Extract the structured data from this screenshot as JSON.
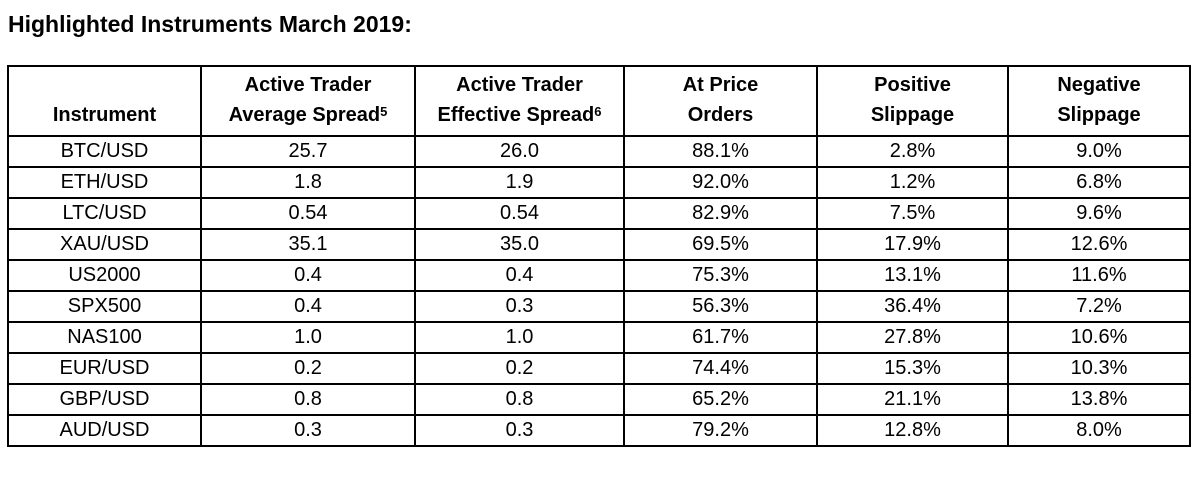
{
  "page": {
    "title": "Highlighted Instruments March 2019:"
  },
  "table": {
    "columns": [
      {
        "id": "instrument",
        "line1": "Instrument",
        "line2": "",
        "sup": ""
      },
      {
        "id": "active-trader-average-spread",
        "line1": "Active Trader",
        "line2": "Average Spread",
        "sup": "5"
      },
      {
        "id": "active-trader-effective-spread",
        "line1": "Active Trader",
        "line2": "Effective Spread",
        "sup": "6"
      },
      {
        "id": "at-price-orders",
        "line1": "At Price",
        "line2": "Orders",
        "sup": ""
      },
      {
        "id": "positive-slippage",
        "line1": "Positive",
        "line2": "Slippage",
        "sup": ""
      },
      {
        "id": "negative-slippage",
        "line1": "Negative",
        "line2": "Slippage",
        "sup": ""
      }
    ],
    "rows": [
      [
        "BTC/USD",
        "25.7",
        "26.0",
        "88.1%",
        "2.8%",
        "9.0%"
      ],
      [
        "ETH/USD",
        "1.8",
        "1.9",
        "92.0%",
        "1.2%",
        "6.8%"
      ],
      [
        "LTC/USD",
        "0.54",
        "0.54",
        "82.9%",
        "7.5%",
        "9.6%"
      ],
      [
        "XAU/USD",
        "35.1",
        "35.0",
        "69.5%",
        "17.9%",
        "12.6%"
      ],
      [
        "US2000",
        "0.4",
        "0.4",
        "75.3%",
        "13.1%",
        "11.6%"
      ],
      [
        "SPX500",
        "0.4",
        "0.3",
        "56.3%",
        "36.4%",
        "7.2%"
      ],
      [
        "NAS100",
        "1.0",
        "1.0",
        "61.7%",
        "27.8%",
        "10.6%"
      ],
      [
        "EUR/USD",
        "0.2",
        "0.2",
        "74.4%",
        "15.3%",
        "10.3%"
      ],
      [
        "GBP/USD",
        "0.8",
        "0.8",
        "65.2%",
        "21.1%",
        "13.8%"
      ],
      [
        "AUD/USD",
        "0.3",
        "0.3",
        "79.2%",
        "12.8%",
        "8.0%"
      ]
    ]
  },
  "colors": {
    "text": "#000000",
    "border": "#000000",
    "background": "#ffffff"
  }
}
